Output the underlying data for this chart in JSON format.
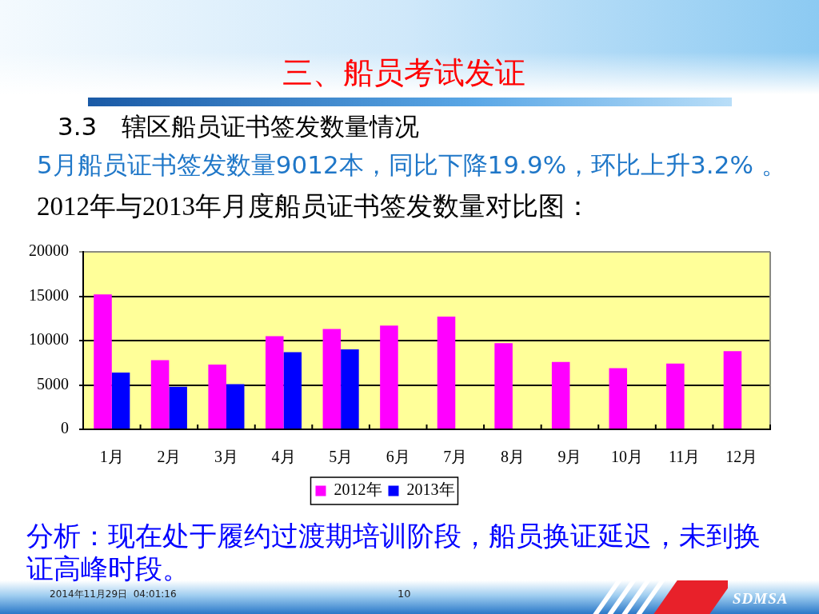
{
  "chart_data": {
    "type": "bar",
    "title": "三、船员考试发证",
    "subtitle": "3.3　辖区船员证书签发数量情况",
    "annotations": [
      "5月船员证书签发数量9012本，同比下降19.9%，环比上升3.2% 。",
      "2012年与2013年月度船员证书签发数量对比图：",
      "分析：现在处于履约过渡期培训阶段，船员换证延迟，未到换证高峰时段。",
      "2014年11月29日  04:01:16",
      "10",
      "SDMSA"
    ],
    "categories": [
      "1月",
      "2月",
      "3月",
      "4月",
      "5月",
      "6月",
      "7月",
      "8月",
      "9月",
      "10月",
      "11月",
      "12月"
    ],
    "series": [
      {
        "name": "2012年",
        "color": "#ff00ff",
        "values": [
          15200,
          7800,
          7300,
          10500,
          11300,
          11700,
          12700,
          9700,
          7600,
          6900,
          7400,
          8800
        ]
      },
      {
        "name": "2013年",
        "color": "#0000ff",
        "values": [
          6400,
          4800,
          5100,
          8700,
          9000,
          null,
          null,
          null,
          null,
          null,
          null,
          null
        ]
      }
    ],
    "ylim": [
      0,
      20000
    ],
    "yticks": [
      0,
      5000,
      10000,
      15000,
      20000
    ],
    "grid": "y",
    "legend": "bottom"
  }
}
